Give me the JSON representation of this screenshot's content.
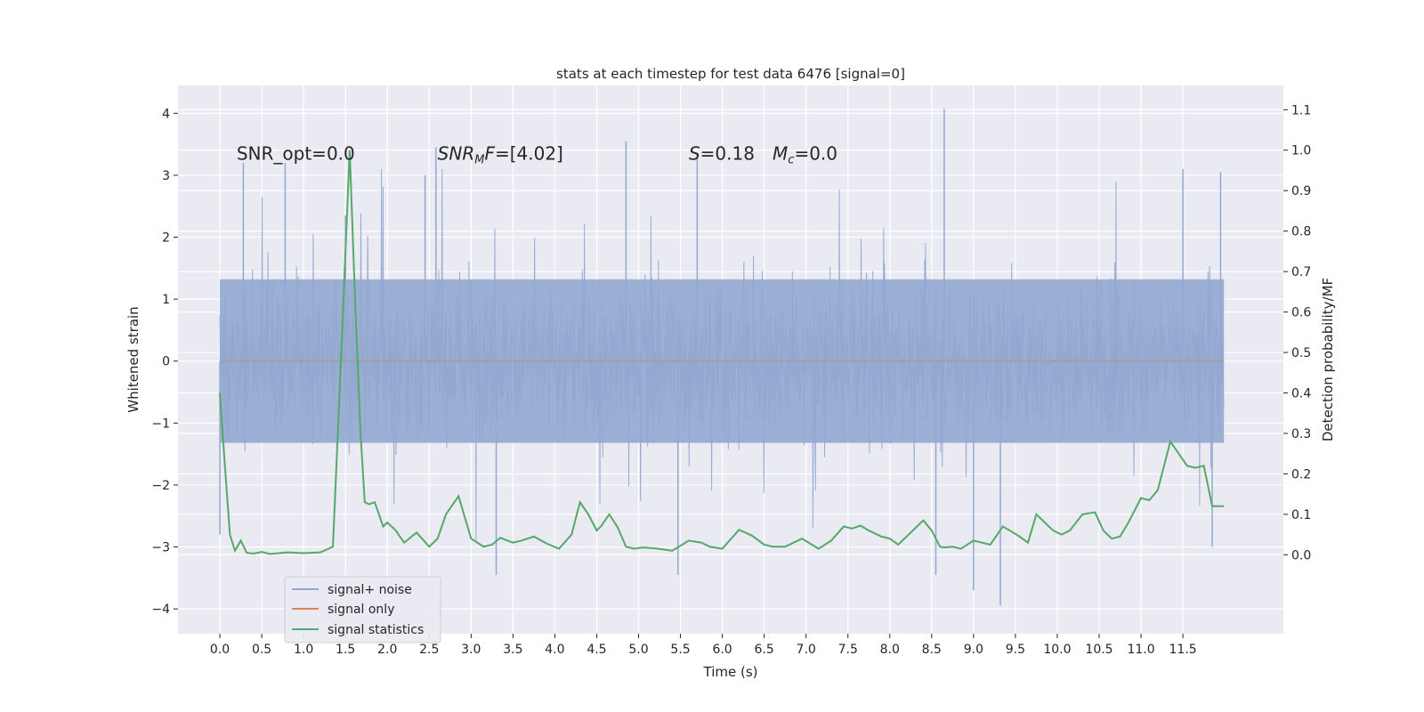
{
  "chart_data": {
    "type": "line",
    "title": "stats at each timestep for test data 6476 [signal=0]",
    "xlabel": "Time (s)",
    "ylabel_left": "Whitened strain",
    "ylabel_right": "Detection probability/MF",
    "xlim": [
      -0.5,
      12.7
    ],
    "ylim_left": [
      -4.4,
      4.45
    ],
    "ylim_right": [
      -0.195,
      1.16
    ],
    "x_ticks": [
      0.0,
      0.5,
      1.0,
      1.5,
      2.0,
      2.5,
      3.0,
      3.5,
      4.0,
      4.5,
      5.0,
      5.5,
      6.0,
      6.5,
      7.0,
      7.5,
      8.0,
      8.5,
      9.0,
      9.5,
      10.0,
      10.5,
      11.0,
      11.5
    ],
    "x_tick_labels": [
      "0.0",
      "0.5",
      "1.0",
      "1.5",
      "2.0",
      "2.5",
      "3.0",
      "3.5",
      "4.0",
      "4.5",
      "5.0",
      "5.5",
      "6.0",
      "6.5",
      "7.0",
      "7.5",
      "8.0",
      "8.5",
      "9.0",
      "9.5",
      "10.0",
      "10.5",
      "11.0",
      "11.5"
    ],
    "y_ticks_left": [
      4,
      3,
      2,
      1,
      0,
      -1,
      -2,
      -3,
      -4
    ],
    "y_tick_labels_left": [
      "4",
      "3",
      "2",
      "1",
      "0",
      "−1",
      "−2",
      "−3",
      "−4"
    ],
    "y_ticks_right": [
      1.1,
      1.0,
      0.9,
      0.8,
      0.7,
      0.6,
      0.5,
      0.4,
      0.3,
      0.2,
      0.1,
      0.0
    ],
    "y_tick_labels_right": [
      "1.1",
      "1.0",
      "0.9",
      "0.8",
      "0.7",
      "0.6",
      "0.5",
      "0.4",
      "0.3",
      "0.2",
      "0.1",
      "0.0"
    ],
    "grid": true,
    "legend_position": "lower-left",
    "annotations": [
      {
        "text": "SNR_opt=0.0",
        "x": 0.2,
        "y": 3.25
      },
      {
        "text": "SNR_MF=[4.02]",
        "x": 2.6,
        "y": 3.25
      },
      {
        "text": "S=0.18",
        "x": 5.6,
        "y": 3.25
      },
      {
        "text": "M_c=0.0",
        "x": 6.6,
        "y": 3.25
      }
    ],
    "series": [
      {
        "name": "signal+ noise",
        "axis": "left",
        "color": "#92a8d1",
        "note": "dense noise trace, roughly ±1.3 core with spikes to about 4.1 and -4.0",
        "x_range": [
          0.0,
          11.99
        ],
        "spikes": [
          {
            "x": 0.28,
            "y": 3.2
          },
          {
            "x": 0.78,
            "y": 3.2
          },
          {
            "x": 1.5,
            "y": 2.35
          },
          {
            "x": 2.45,
            "y": 3.0
          },
          {
            "x": 2.58,
            "y": 3.45
          },
          {
            "x": 4.85,
            "y": 3.55
          },
          {
            "x": 5.7,
            "y": 3.3
          },
          {
            "x": 8.65,
            "y": 4.07
          },
          {
            "x": 11.5,
            "y": 3.1
          },
          {
            "x": 11.95,
            "y": 3.05
          },
          {
            "x": 3.3,
            "y": -3.45
          },
          {
            "x": 5.47,
            "y": -3.45
          },
          {
            "x": 8.55,
            "y": -3.45
          },
          {
            "x": 9.0,
            "y": -3.7
          },
          {
            "x": 9.32,
            "y": -3.95
          },
          {
            "x": 11.85,
            "y": -3.0
          },
          {
            "x": 0.0,
            "y": -2.8
          }
        ]
      },
      {
        "name": "signal only",
        "axis": "left",
        "color": "#dd8452",
        "x": [
          0.0,
          11.99
        ],
        "y": [
          0.0,
          0.0
        ]
      },
      {
        "name": "signal statistics",
        "axis": "right",
        "color": "#55a868",
        "x": [
          0.0,
          0.06,
          0.12,
          0.18,
          0.25,
          0.32,
          0.4,
          0.5,
          0.6,
          0.8,
          1.0,
          1.2,
          1.35,
          1.45,
          1.55,
          1.62,
          1.68,
          1.73,
          1.78,
          1.85,
          1.9,
          1.95,
          2.0,
          2.1,
          2.2,
          2.35,
          2.5,
          2.6,
          2.7,
          2.85,
          3.0,
          3.15,
          3.25,
          3.35,
          3.5,
          3.6,
          3.75,
          3.9,
          4.05,
          4.2,
          4.3,
          4.4,
          4.5,
          4.55,
          4.65,
          4.75,
          4.85,
          4.95,
          5.05,
          5.2,
          5.4,
          5.6,
          5.75,
          5.85,
          6.0,
          6.2,
          6.35,
          6.5,
          6.6,
          6.75,
          6.95,
          7.15,
          7.3,
          7.45,
          7.55,
          7.65,
          7.75,
          7.9,
          8.0,
          8.1,
          8.25,
          8.4,
          8.5,
          8.6,
          8.65,
          8.75,
          8.85,
          9.0,
          9.2,
          9.35,
          9.45,
          9.55,
          9.65,
          9.75,
          9.85,
          9.95,
          10.05,
          10.15,
          10.3,
          10.45,
          10.55,
          10.65,
          10.75,
          10.85,
          11.0,
          11.1,
          11.2,
          11.35,
          11.45,
          11.55,
          11.65,
          11.75,
          11.85,
          11.99
        ],
        "y": [
          0.4,
          0.22,
          0.05,
          0.01,
          0.035,
          0.005,
          0.003,
          0.007,
          0.002,
          0.006,
          0.004,
          0.006,
          0.02,
          0.5,
          1.0,
          0.6,
          0.3,
          0.13,
          0.125,
          0.13,
          0.1,
          0.07,
          0.08,
          0.06,
          0.03,
          0.055,
          0.02,
          0.04,
          0.1,
          0.145,
          0.04,
          0.02,
          0.025,
          0.042,
          0.03,
          0.035,
          0.045,
          0.028,
          0.015,
          0.05,
          0.13,
          0.1,
          0.06,
          0.07,
          0.1,
          0.068,
          0.02,
          0.015,
          0.018,
          0.016,
          0.01,
          0.035,
          0.03,
          0.02,
          0.015,
          0.062,
          0.048,
          0.025,
          0.02,
          0.02,
          0.04,
          0.015,
          0.035,
          0.07,
          0.065,
          0.072,
          0.06,
          0.045,
          0.04,
          0.025,
          0.055,
          0.085,
          0.06,
          0.02,
          0.018,
          0.02,
          0.015,
          0.035,
          0.025,
          0.07,
          0.058,
          0.045,
          0.03,
          0.1,
          0.08,
          0.06,
          0.05,
          0.06,
          0.1,
          0.105,
          0.06,
          0.04,
          0.045,
          0.08,
          0.14,
          0.135,
          0.16,
          0.28,
          0.25,
          0.22,
          0.215,
          0.22,
          0.12,
          0.12
        ]
      }
    ]
  }
}
